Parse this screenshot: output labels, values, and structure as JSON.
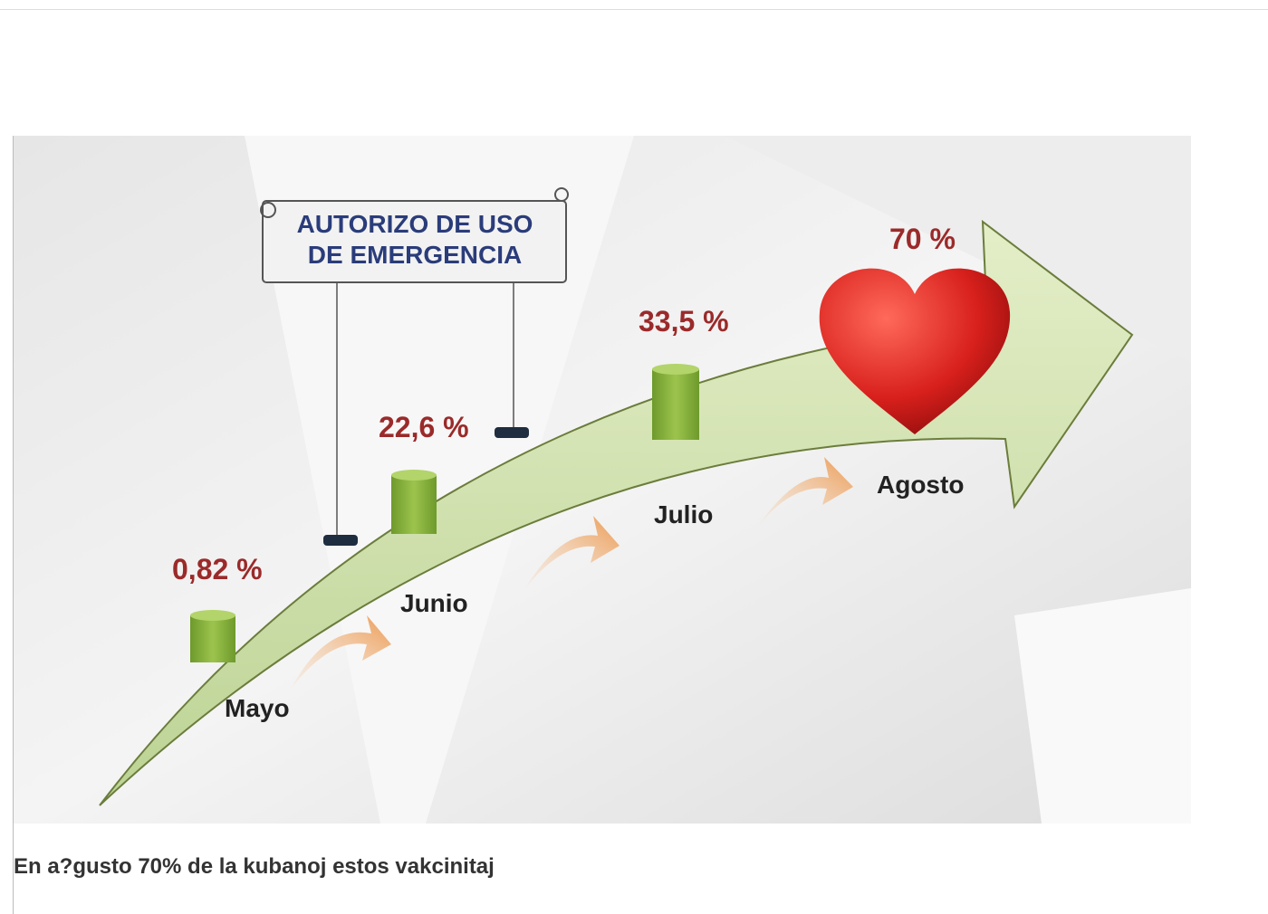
{
  "infographic": {
    "banner": [
      "AUTORIZO DE USO",
      "DE EMERGENCIA"
    ],
    "milestones": [
      {
        "month": "Mayo",
        "percent": "0,82 %"
      },
      {
        "month": "Junio",
        "percent": "22,6 %"
      },
      {
        "month": "Julio",
        "percent": "33,5 %"
      },
      {
        "month": "Agosto",
        "percent": "70 %"
      }
    ]
  },
  "caption": "En a?gusto 70%  de la kubanoj estos vakcinitaj"
}
